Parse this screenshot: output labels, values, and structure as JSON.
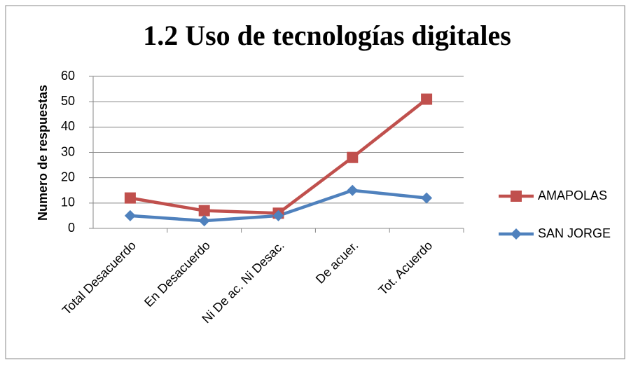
{
  "chart_data": {
    "type": "line",
    "title": "1.2 Uso de tecnologías digitales",
    "y_label": "Numero de respuestas",
    "categories": [
      "Total Desacuerdo",
      "En Desacuerdo",
      "Ni De ac. Ni Desac.",
      "De acuer.",
      "Tot. Acuerdo"
    ],
    "series": [
      {
        "name": "AMAPOLAS",
        "color": "#c0504d",
        "marker": "square",
        "values": [
          12,
          7,
          6,
          28,
          51
        ]
      },
      {
        "name": "SAN JORGE",
        "color": "#4f81bd",
        "marker": "diamond",
        "values": [
          5,
          3,
          5,
          15,
          12
        ]
      }
    ],
    "ylim": [
      0,
      60
    ],
    "yticks": [
      0,
      10,
      20,
      30,
      40,
      50,
      60
    ],
    "grid": true,
    "legend": "right"
  }
}
